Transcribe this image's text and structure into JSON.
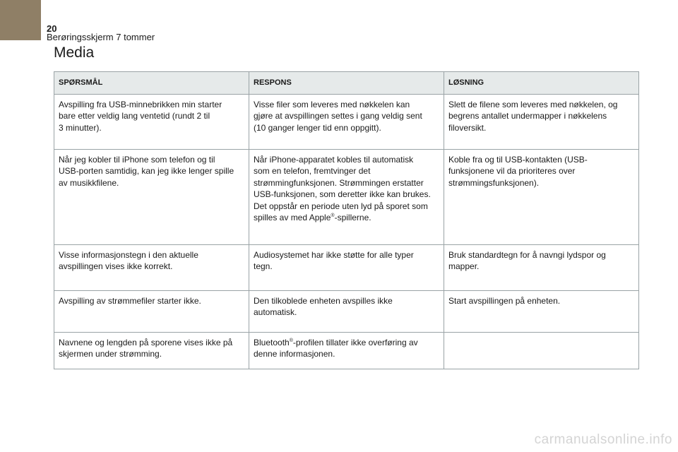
{
  "page": {
    "number": "20",
    "section": "Berøringsskjerm 7 tommer",
    "title": "Media"
  },
  "table": {
    "headers": [
      "SPØRSMÅL",
      "RESPONS",
      "LØSNING"
    ],
    "rows": [
      [
        [
          "Avspilling fra USB-minnebrikken min starter",
          "bare etter veldig lang ventetid (rundt 2 til",
          "3 minutter)."
        ],
        [
          "Visse filer som leveres med nøkkelen kan",
          "gjøre at avspillingen settes i gang veldig sent",
          "(10 ganger lenger tid enn oppgitt)."
        ],
        [
          "Slett de filene som leveres med nøkkelen, og",
          "begrens antallet undermapper i nøkkelens",
          "filoversikt."
        ]
      ],
      [
        [
          "Når jeg kobler til iPhone som telefon og til",
          "USB-porten samtidig, kan jeg ikke lenger spille",
          "av musikkfilene."
        ],
        [
          "Når iPhone-apparatet kobles til automatisk",
          "som en telefon, fremtvinger det",
          "strømmingfunksjonen. Strømmingen erstatter",
          "USB-funksjonen, som deretter ikke kan brukes.",
          "Det oppstår en periode uten lyd på sporet som",
          "spilles av med Apple®-spillerne."
        ],
        [
          "Koble fra og til USB-kontakten (USB-",
          "funksjonene vil da prioriteres over",
          "strømmingsfunksjonen)."
        ]
      ],
      [
        [
          "Visse informasjonstegn i den aktuelle",
          "avspillingen vises ikke korrekt."
        ],
        [
          "Audiosystemet har ikke støtte for alle typer",
          "tegn."
        ],
        [
          "Bruk standardtegn for å navngi lydspor og",
          "mapper."
        ]
      ],
      [
        [
          "Avspilling av strømmefiler starter ikke."
        ],
        [
          "Den tilkoblede enheten avspilles ikke",
          "automatisk."
        ],
        [
          "Start avspillingen på enheten."
        ]
      ],
      [
        [
          "Navnene og lengden på sporene vises ikke på",
          "skjermen under strømming."
        ],
        [
          "Bluetooth®-profilen tillater ikke overføring av",
          "denne informasjonen."
        ],
        []
      ]
    ]
  },
  "watermark": "carmanualsonline.info",
  "colors": {
    "tab": "#8f7f66",
    "header_bg": "#e6eaea",
    "border": "#9aa3a6"
  }
}
